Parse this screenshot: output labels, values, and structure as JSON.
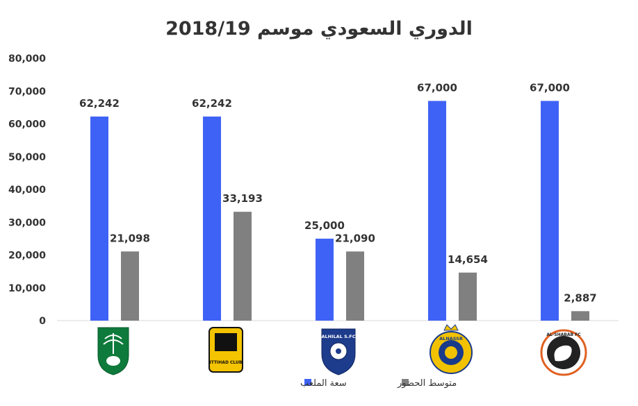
{
  "chart_data": {
    "type": "bar",
    "title": "الدوري السعودي موسم 2018/19",
    "categories": [
      "Al-Ahli",
      "Al-Ittihad",
      "Al-Hilal",
      "Al-Nassr",
      "Al-Shabab"
    ],
    "category_logo_text": [
      "",
      "ITTIHAD CLUB",
      "ALHILAL S.FC",
      "ALNASSR",
      "AL-SHABAB FC"
    ],
    "series": [
      {
        "name": "سعة الملعب",
        "color": "#3F62F6",
        "values": [
          62242,
          62242,
          25000,
          67000,
          67000
        ],
        "labels": [
          "62,242",
          "62,242",
          "25,000",
          "67,000",
          "67,000"
        ]
      },
      {
        "name": "متوسط الحضور",
        "color": "#808080",
        "values": [
          21098,
          33193,
          21090,
          14654,
          2887
        ],
        "labels": [
          "21,098",
          "33,193",
          "21,090",
          "14,654",
          "2,887"
        ]
      }
    ],
    "ylim": [
      0,
      80000
    ],
    "yticks": [
      "0",
      "10,000",
      "20,000",
      "30,000",
      "40,000",
      "50,000",
      "60,000",
      "70,000",
      "80,000"
    ],
    "legend_position": "bottom",
    "grid": false
  }
}
